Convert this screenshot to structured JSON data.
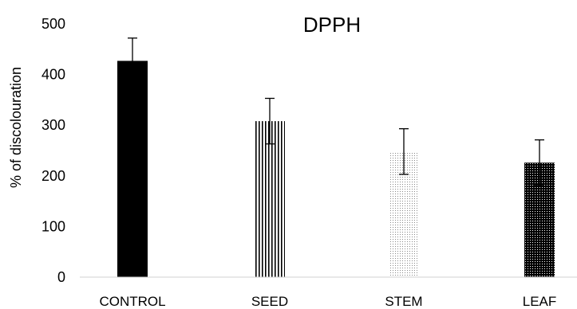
{
  "chart_data": {
    "type": "bar",
    "title": "DPPH",
    "xlabel": "",
    "ylabel": "% of discolouration",
    "ylim": [
      0,
      500
    ],
    "yticks": [
      0,
      100,
      200,
      300,
      400,
      500
    ],
    "grid": false,
    "legend": "none",
    "categories": [
      "CONTROL",
      "SEED",
      "STEM",
      "LEAF"
    ],
    "values": [
      427,
      308,
      248,
      226
    ],
    "error": [
      45,
      45,
      45,
      45
    ],
    "bar_styles": [
      {
        "pattern": "solid",
        "color": "#000000"
      },
      {
        "pattern": "vertical-lines",
        "color": "#000000"
      },
      {
        "pattern": "fine-dots",
        "color": "#000000"
      },
      {
        "pattern": "dense-dots",
        "color": "#000000"
      }
    ]
  }
}
